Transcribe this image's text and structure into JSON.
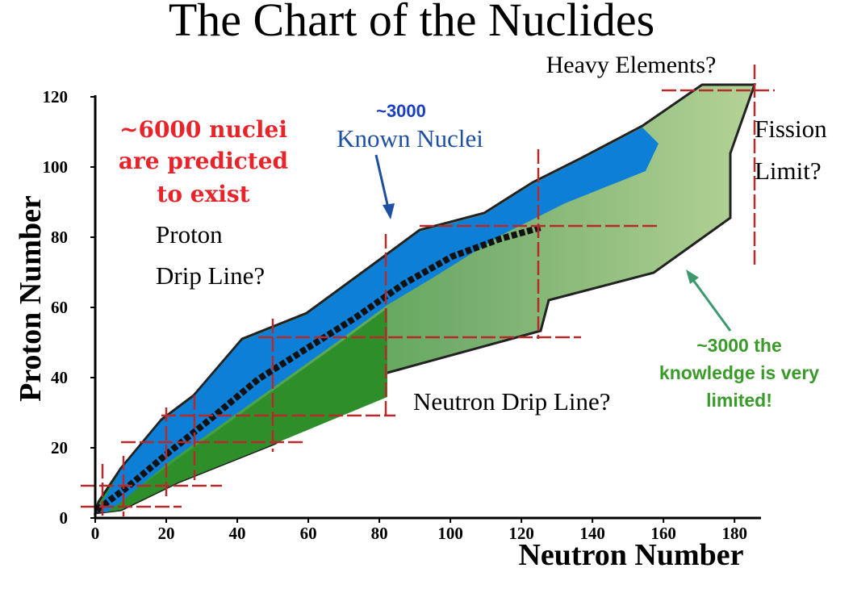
{
  "chart_data": {
    "type": "area",
    "title": "The Chart of the Nuclides",
    "x_label": "Neutron Number",
    "y_label": "Proton Number",
    "xlim": [
      0,
      187
    ],
    "ylim": [
      0,
      120
    ],
    "xticks": [
      0,
      20,
      40,
      60,
      80,
      100,
      120,
      140,
      160,
      180
    ],
    "yticks": [
      0,
      20,
      40,
      60,
      80,
      100,
      120
    ],
    "annotations": [
      {
        "text": "Heavy Elements?",
        "color": "#000000"
      },
      {
        "text": "~3000",
        "color": "#1a3fc0"
      },
      {
        "text": "Known Nuclei",
        "color": "#1d4fa3"
      },
      {
        "text": "~6000 nuclei",
        "color": "#e8232a"
      },
      {
        "text": "are predicted",
        "color": "#e8232a"
      },
      {
        "text": "to exist",
        "color": "#e8232a"
      },
      {
        "text": "Proton",
        "color": "#000000"
      },
      {
        "text": "Drip Line?",
        "color": "#000000"
      },
      {
        "text": "Fission",
        "color": "#000000"
      },
      {
        "text": "Limit?",
        "color": "#000000"
      },
      {
        "text": "~3000 the",
        "color": "#3a9a2a"
      },
      {
        "text": "knowledge is very",
        "color": "#3a9a2a"
      },
      {
        "text": "limited!",
        "color": "#3a9a2a"
      },
      {
        "text": "Neutron Drip Line?",
        "color": "#000000"
      }
    ]
  }
}
